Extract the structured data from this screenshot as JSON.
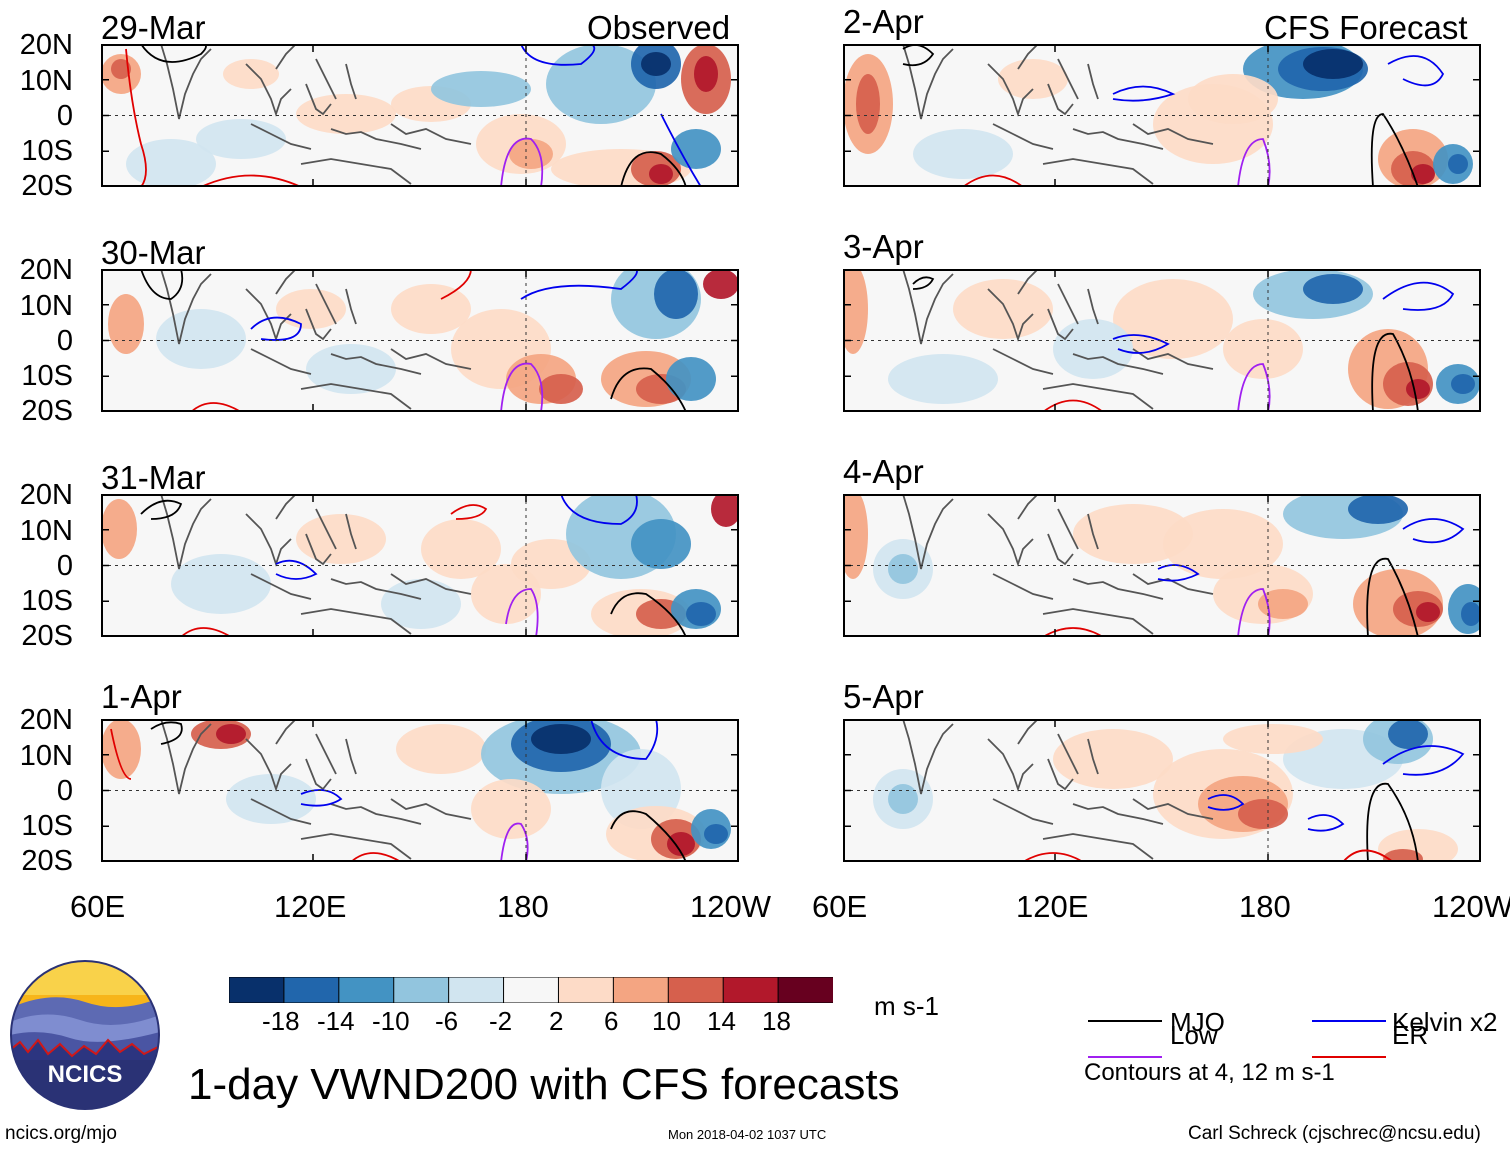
{
  "figure": {
    "title": "1-day VWND200 with CFS forecasts",
    "left_header": "Observed",
    "right_header": "CFS Forecast",
    "site": "ncics.org/mjo",
    "timestamp": "Mon 2018-04-02 1037 UTC",
    "author": "Carl Schreck (cjschrec@ncsu.edu)",
    "logo_text": "NCICS"
  },
  "panels": [
    {
      "date": "29-Mar",
      "kind": "observed"
    },
    {
      "date": "30-Mar",
      "kind": "observed"
    },
    {
      "date": "31-Mar",
      "kind": "observed"
    },
    {
      "date": "1-Apr",
      "kind": "observed"
    },
    {
      "date": "2-Apr",
      "kind": "forecast"
    },
    {
      "date": "3-Apr",
      "kind": "forecast"
    },
    {
      "date": "4-Apr",
      "kind": "forecast"
    },
    {
      "date": "5-Apr",
      "kind": "forecast"
    }
  ],
  "axes": {
    "lat_labels": [
      "20N",
      "10N",
      "0",
      "10S",
      "20S"
    ],
    "lon_labels": [
      "60E",
      "120E",
      "180",
      "120W"
    ]
  },
  "colorbar": {
    "unit": "m s-1",
    "ticks": [
      "-18",
      "-14",
      "-10",
      "-6",
      "-2",
      "2",
      "6",
      "10",
      "14",
      "18"
    ],
    "colors": [
      "#08306b",
      "#2166ac",
      "#4393c3",
      "#92c5de",
      "#d1e5f0",
      "#f7f7f7",
      "#fddbc7",
      "#f4a582",
      "#d6604d",
      "#b2182b",
      "#67001f"
    ]
  },
  "legend": {
    "items": [
      {
        "label": "MJO",
        "color": "#000000"
      },
      {
        "label": "Kelvin x2",
        "color": "#0000ee"
      },
      {
        "label": "Low",
        "color": "#a020f0"
      },
      {
        "label": "ER",
        "color": "#e00000"
      }
    ],
    "note": "Contours at 4, 12 m s-1"
  },
  "chart_data": {
    "type": "heatmap",
    "title": "1-day VWND200 with CFS forecasts",
    "variable": "200-hPa meridional wind",
    "units": "m s-1",
    "lon_range": [
      "60E",
      "120W"
    ],
    "lat_range": [
      "20S",
      "20N"
    ],
    "levels": [
      -18,
      -14,
      -10,
      -6,
      -2,
      2,
      6,
      10,
      14,
      18
    ],
    "contour_levels": [
      4,
      12
    ],
    "dates_observed": [
      "29-Mar",
      "30-Mar",
      "31-Mar",
      "1-Apr"
    ],
    "dates_forecast": [
      "2-Apr",
      "3-Apr",
      "4-Apr",
      "5-Apr"
    ],
    "filters": [
      "MJO",
      "Kelvin x2",
      "Low",
      "ER"
    ]
  }
}
